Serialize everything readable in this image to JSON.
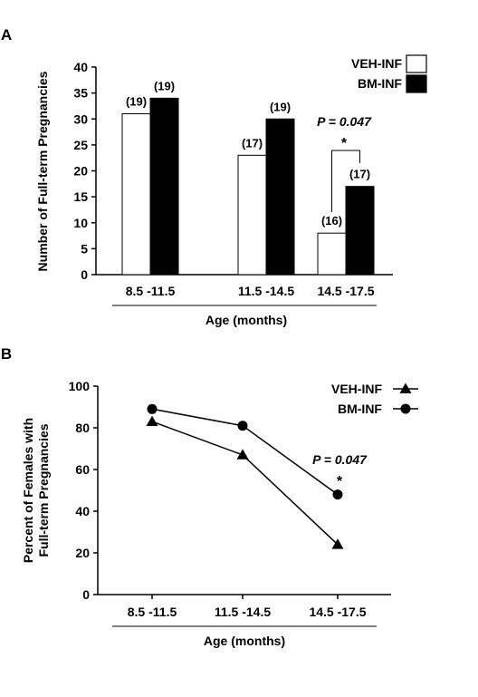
{
  "chart_data": [
    {
      "panel_label": "A",
      "type": "bar",
      "categories": [
        "8.5 -11.5",
        "11.5 -14.5",
        "14.5 -17.5"
      ],
      "series": [
        {
          "name": "VEH-INF",
          "values": [
            31,
            23,
            8
          ],
          "n_labels": [
            "(19)",
            "(17)",
            "(16)"
          ],
          "color": "#ffffff"
        },
        {
          "name": "BM-INF",
          "values": [
            34,
            30,
            17
          ],
          "n_labels": [
            "(19)",
            "(19)",
            "(17)"
          ],
          "color": "#000000"
        }
      ],
      "ylabel": "Number of Full-term Pregnancies",
      "xlabel": "Age (months)",
      "ylim": [
        0,
        40
      ],
      "yticks": [
        0,
        5,
        10,
        15,
        20,
        25,
        30,
        35,
        40
      ],
      "grid": false,
      "legend": "top-right",
      "annotation": {
        "text": "P = 0.047",
        "star": "*",
        "category_index": 2
      }
    },
    {
      "panel_label": "B",
      "type": "line",
      "categories": [
        "8.5 -11.5",
        "11.5 -14.5",
        "14.5 -17.5"
      ],
      "series": [
        {
          "name": "VEH-INF",
          "values": [
            83,
            67,
            24
          ],
          "marker": "triangle"
        },
        {
          "name": "BM-INF",
          "values": [
            89,
            81,
            48
          ],
          "marker": "circle"
        }
      ],
      "ylabel_lines": [
        "Percent of Females with",
        "Full-term Pregnancies"
      ],
      "xlabel": "Age (months)",
      "ylim": [
        0,
        100
      ],
      "yticks": [
        0,
        20,
        40,
        60,
        80,
        100
      ],
      "grid": false,
      "legend": "top-right",
      "annotation": {
        "text": "P = 0.047",
        "star": "*",
        "category_index": 2
      }
    }
  ]
}
